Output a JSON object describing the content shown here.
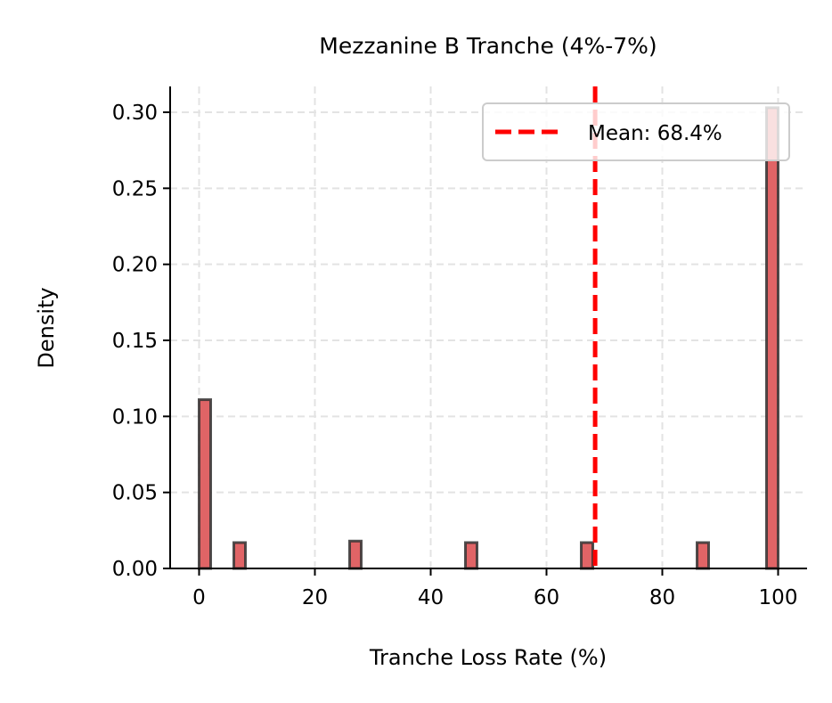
{
  "chart_data": {
    "type": "bar",
    "title": "Mezzanine B Tranche (4%-7%)",
    "xlabel": "Tranche Loss Rate (%)",
    "ylabel": "Density",
    "xlim": [
      -5,
      105
    ],
    "ylim": [
      0,
      0.317
    ],
    "xticks": [
      0,
      20,
      40,
      60,
      80,
      100
    ],
    "xtick_labels": [
      "0",
      "20",
      "40",
      "60",
      "80",
      "100"
    ],
    "yticks": [
      0,
      0.05,
      0.1,
      0.15,
      0.2,
      0.25,
      0.3
    ],
    "ytick_labels": [
      "0.00",
      "0.05",
      "0.10",
      "0.15",
      "0.20",
      "0.25",
      "0.30"
    ],
    "grid": true,
    "bins": [
      {
        "start": 0,
        "end": 2,
        "density": 0.111
      },
      {
        "start": 6,
        "end": 8,
        "density": 0.017
      },
      {
        "start": 26,
        "end": 28,
        "density": 0.018
      },
      {
        "start": 46,
        "end": 48,
        "density": 0.017
      },
      {
        "start": 66,
        "end": 68,
        "density": 0.017
      },
      {
        "start": 86,
        "end": 88,
        "density": 0.017
      },
      {
        "start": 98,
        "end": 100,
        "density": 0.303
      }
    ],
    "mean_line": {
      "x": 68.4,
      "label": "Mean: 68.4%",
      "color": "#ff0000",
      "style": "dashed"
    },
    "legend_placement": "top-right",
    "bar_color": "#e06466",
    "bar_edge_color": "#333333"
  }
}
